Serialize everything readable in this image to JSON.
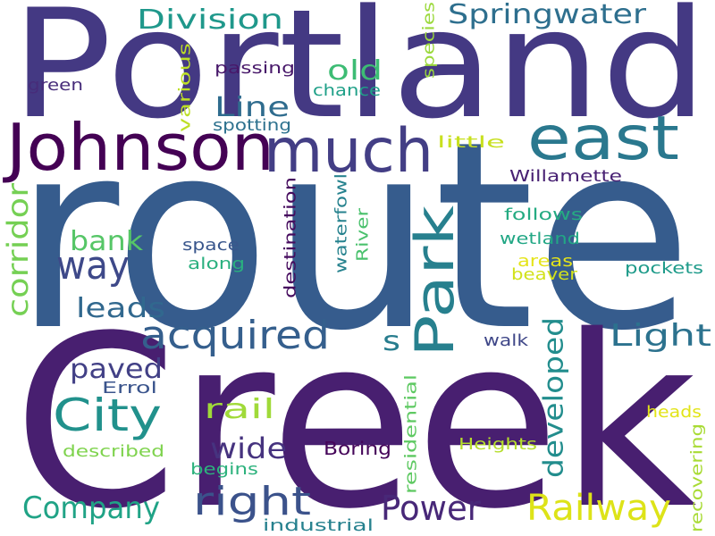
{
  "words": [
    {
      "text": "route",
      "color": "#365c8d"
    },
    {
      "text": "Creek",
      "color": "#481f70"
    },
    {
      "text": "Portland",
      "color": "#443983"
    },
    {
      "text": "Johnson",
      "color": "#440154"
    },
    {
      "text": "much",
      "color": "#433e85"
    },
    {
      "text": "east",
      "color": "#2a788e"
    },
    {
      "text": "Park",
      "color": "#27808e"
    },
    {
      "text": "City",
      "color": "#21918c"
    },
    {
      "text": "Springwater",
      "color": "#2e6f8e"
    },
    {
      "text": "Division",
      "color": "#1f988b"
    },
    {
      "text": "acquired",
      "color": "#355f8d"
    },
    {
      "text": "way",
      "color": "#3e4989"
    },
    {
      "text": "right",
      "color": "#3b528b"
    },
    {
      "text": "Power",
      "color": "#482878"
    },
    {
      "text": "Railway",
      "color": "#dde318"
    },
    {
      "text": "Company",
      "color": "#20a386"
    },
    {
      "text": "Light",
      "color": "#2c728e"
    },
    {
      "text": "corridor",
      "color": "#75d054"
    },
    {
      "text": "old",
      "color": "#3dbc74"
    },
    {
      "text": "Line",
      "color": "#2f6c8e"
    },
    {
      "text": "bank",
      "color": "#56c667"
    },
    {
      "text": "leads",
      "color": "#31688e"
    },
    {
      "text": "paved",
      "color": "#424086"
    },
    {
      "text": "rail",
      "color": "#a0da39"
    },
    {
      "text": "wide",
      "color": "#46337f"
    },
    {
      "text": "s",
      "color": "#287d8e"
    },
    {
      "text": "developed",
      "color": "#228d8d"
    },
    {
      "text": "passing",
      "color": "#48186a"
    },
    {
      "text": "chance",
      "color": "#1fa088"
    },
    {
      "text": "green",
      "color": "#472c7a"
    },
    {
      "text": "species",
      "color": "#9bd93c"
    },
    {
      "text": "spotting",
      "color": "#2d718e"
    },
    {
      "text": "various",
      "color": "#bddf26"
    },
    {
      "text": "little",
      "color": "#c8e020"
    },
    {
      "text": "Willamette",
      "color": "#482173"
    },
    {
      "text": "follows",
      "color": "#25ab82"
    },
    {
      "text": "wetland",
      "color": "#22a785"
    },
    {
      "text": "space",
      "color": "#39568c"
    },
    {
      "text": "along",
      "color": "#2ab07f"
    },
    {
      "text": "destination",
      "color": "#460b5e"
    },
    {
      "text": "waterfowl",
      "color": "#26828e"
    },
    {
      "text": "River",
      "color": "#4ac16d"
    },
    {
      "text": "areas",
      "color": "#e5e419"
    },
    {
      "text": "beaver",
      "color": "#d2e21b"
    },
    {
      "text": "pockets",
      "color": "#1e9b8a"
    },
    {
      "text": "walk",
      "color": "#3f4788"
    },
    {
      "text": "Errol",
      "color": "#3a548c"
    },
    {
      "text": "heads",
      "color": "#e2e418"
    },
    {
      "text": "described",
      "color": "#7fd34e"
    },
    {
      "text": "begins",
      "color": "#2db27d"
    },
    {
      "text": "Boring",
      "color": "#450559"
    },
    {
      "text": "Heights",
      "color": "#b5de2b"
    },
    {
      "text": "residential",
      "color": "#5ec962"
    },
    {
      "text": "recovering",
      "color": "#a8db34"
    },
    {
      "text": "industrial",
      "color": "#26818e"
    }
  ]
}
